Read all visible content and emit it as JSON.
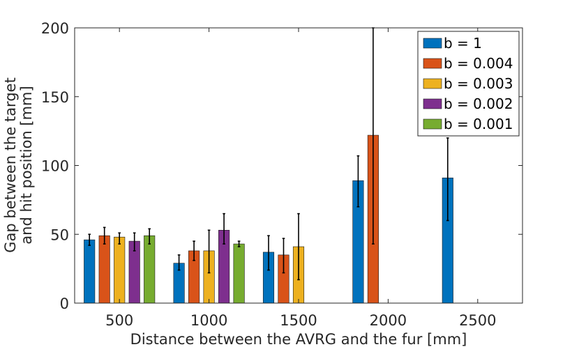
{
  "chart_data": {
    "type": "bar",
    "categories": [
      "500",
      "1000",
      "1500",
      "2000",
      "2500"
    ],
    "xlabel": "Distance between the AVRG and the fur [mm]",
    "ylabel_lines": [
      "Gap between the target",
      "and hit position [mm]"
    ],
    "ylim": [
      0,
      200
    ],
    "yticks": [
      "0",
      "50",
      "100",
      "150",
      "200"
    ],
    "legend_position": "top-right",
    "series": [
      {
        "name": "b = 1",
        "color": "#0072BD",
        "values": [
          46,
          29,
          37,
          89,
          91
        ],
        "errors": [
          [
            42,
            50
          ],
          [
            24,
            35
          ],
          [
            24,
            49
          ],
          [
            70,
            107
          ],
          [
            60,
            120
          ]
        ]
      },
      {
        "name": "b = 0.004",
        "color": "#D95319",
        "values": [
          49,
          38,
          35,
          122,
          null
        ],
        "errors": [
          [
            43,
            55
          ],
          [
            31,
            45
          ],
          [
            22,
            47
          ],
          [
            43,
            200
          ],
          null
        ]
      },
      {
        "name": "b = 0.003",
        "color": "#EDB120",
        "values": [
          48,
          38,
          41,
          null,
          null
        ],
        "errors": [
          [
            43,
            51
          ],
          [
            22,
            53
          ],
          [
            17,
            65
          ],
          null,
          null
        ]
      },
      {
        "name": "b = 0.002",
        "color": "#7E2F8E",
        "values": [
          45,
          53,
          null,
          null,
          null
        ],
        "errors": [
          [
            38,
            51
          ],
          [
            43,
            65
          ],
          null,
          null,
          null
        ]
      },
      {
        "name": "b = 0.001",
        "color": "#77AC30",
        "values": [
          49,
          43,
          null,
          null,
          null
        ],
        "errors": [
          [
            43,
            54
          ],
          [
            41,
            45
          ],
          null,
          null,
          null
        ]
      }
    ]
  }
}
